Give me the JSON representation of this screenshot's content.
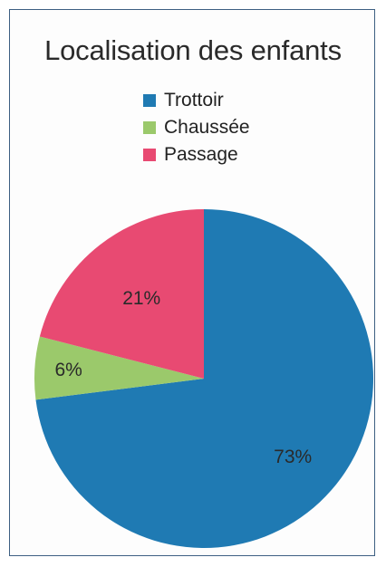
{
  "colors": {
    "border": "#3d5f82",
    "text": "#2a2a2a"
  },
  "chart_data": {
    "type": "pie",
    "title": "Localisation des enfants",
    "legend_position": "top",
    "slices": [
      {
        "label": "Trottoir",
        "value": 73,
        "display": "73%",
        "color": "#1f7ab3"
      },
      {
        "label": "Chaussée",
        "value": 6,
        "display": "6%",
        "color": "#9bc96b"
      },
      {
        "label": "Passage",
        "value": 21,
        "display": "21%",
        "color": "#e84a72"
      }
    ]
  }
}
